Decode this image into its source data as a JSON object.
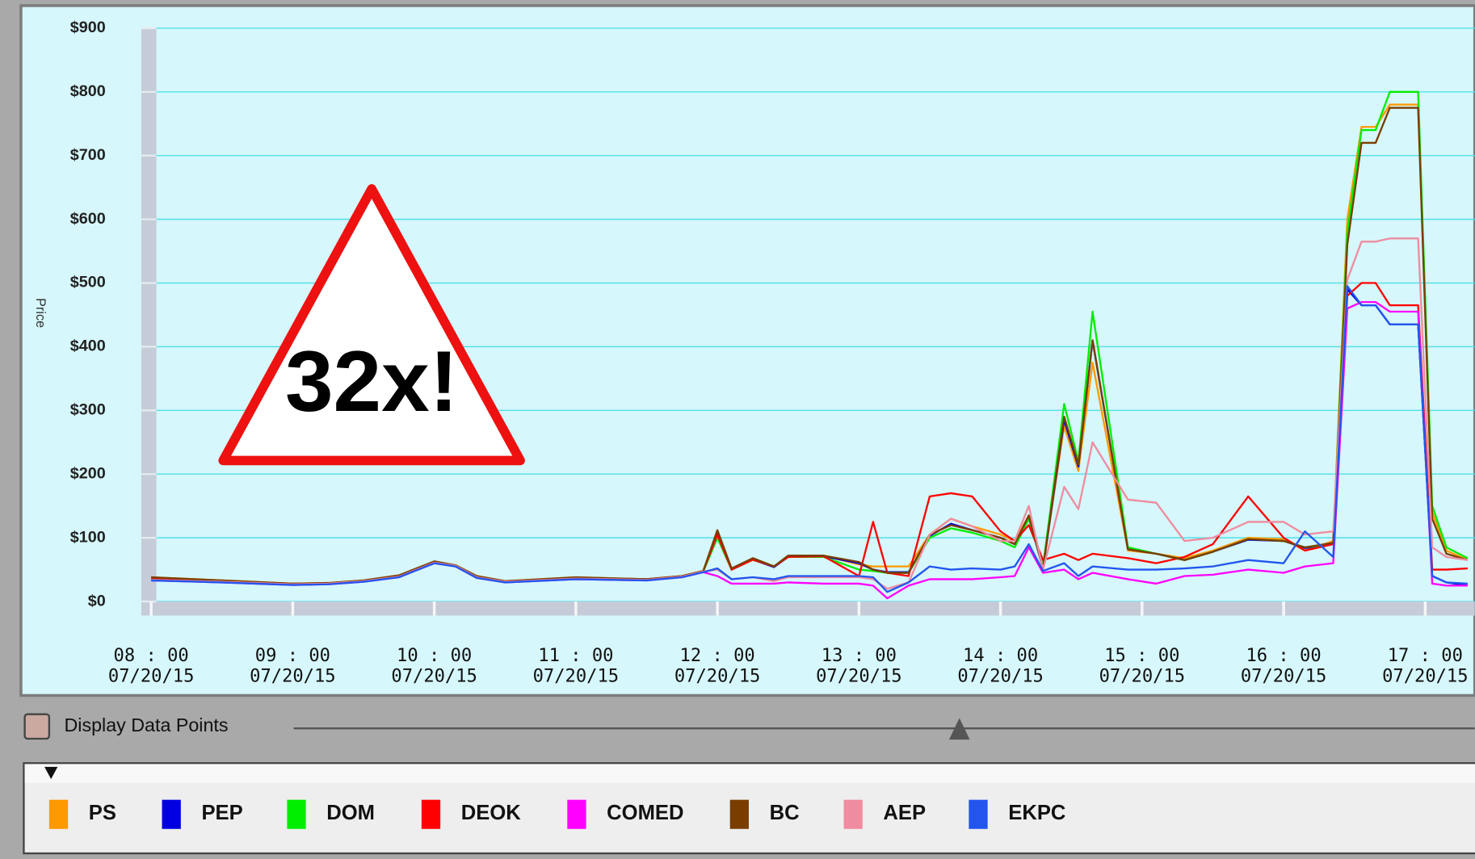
{
  "chart_data": {
    "type": "line",
    "annotation": "32x!",
    "ylabel": "Price",
    "checkbox_label": "Display Data Points",
    "x": [
      8,
      8.5,
      9,
      9.25,
      9.5,
      9.75,
      10,
      10.15,
      10.3,
      10.5,
      11,
      11.5,
      11.75,
      11.9,
      12,
      12.1,
      12.25,
      12.4,
      12.5,
      12.75,
      13,
      13.1,
      13.2,
      13.35,
      13.5,
      13.65,
      13.8,
      14,
      14.1,
      14.2,
      14.3,
      14.45,
      14.55,
      14.65,
      14.9,
      15.1,
      15.3,
      15.5,
      15.75,
      16,
      16.15,
      16.35,
      16.45,
      16.55,
      16.65,
      16.75,
      16.85,
      16.95,
      17.05,
      17.15,
      17.3
    ],
    "xlim": [
      7.1,
      17.35
    ],
    "xticks": [
      {
        "value": 8,
        "label": "08 : 00",
        "date": "07/20/15"
      },
      {
        "value": 9,
        "label": "09 : 00",
        "date": "07/20/15"
      },
      {
        "value": 10,
        "label": "10 : 00",
        "date": "07/20/15"
      },
      {
        "value": 11,
        "label": "11 : 00",
        "date": "07/20/15"
      },
      {
        "value": 12,
        "label": "12 : 00",
        "date": "07/20/15"
      },
      {
        "value": 13,
        "label": "13 : 00",
        "date": "07/20/15"
      },
      {
        "value": 14,
        "label": "14 : 00",
        "date": "07/20/15"
      },
      {
        "value": 15,
        "label": "15 : 00",
        "date": "07/20/15"
      },
      {
        "value": 16,
        "label": "16 : 00",
        "date": "07/20/15"
      },
      {
        "value": 17,
        "label": "17 : 00",
        "date": "07/20/15"
      }
    ],
    "ylim": [
      0,
      900
    ],
    "yticks": [
      {
        "value": 0,
        "label": "$0"
      },
      {
        "value": 100,
        "label": "$100"
      },
      {
        "value": 200,
        "label": "$200"
      },
      {
        "value": 300,
        "label": "$300"
      },
      {
        "value": 400,
        "label": "$400"
      },
      {
        "value": 500,
        "label": "$500"
      },
      {
        "value": 600,
        "label": "$600"
      },
      {
        "value": 700,
        "label": "$700"
      },
      {
        "value": 800,
        "label": "$800"
      },
      {
        "value": 900,
        "label": "$900"
      }
    ],
    "grid": true,
    "series": [
      {
        "name": "PS",
        "color": "#ff9900",
        "values": [
          38,
          33,
          28,
          29,
          33,
          41,
          62,
          57,
          40,
          32,
          38,
          35,
          40,
          48,
          108,
          50,
          65,
          55,
          70,
          72,
          58,
          55,
          55,
          55,
          105,
          130,
          118,
          105,
          95,
          135,
          55,
          275,
          205,
          375,
          80,
          75,
          68,
          80,
          100,
          98,
          80,
          95,
          600,
          745,
          745,
          780,
          780,
          780,
          140,
          80,
          65
        ]
      },
      {
        "name": "PEP",
        "color": "#0000e0",
        "values": [
          36,
          32,
          27,
          28,
          32,
          40,
          61,
          56,
          39,
          31,
          36,
          34,
          39,
          47,
          110,
          50,
          66,
          54,
          70,
          71,
          60,
          50,
          46,
          46,
          103,
          122,
          112,
          100,
          90,
          132,
          52,
          285,
          212,
          410,
          82,
          75,
          65,
          78,
          97,
          95,
          84,
          90,
          490,
          465,
          465,
          435,
          435,
          435,
          40,
          30,
          25
        ]
      },
      {
        "name": "DOM",
        "color": "#00ee00",
        "values": [
          35,
          31,
          27,
          28,
          31,
          39,
          60,
          55,
          38,
          31,
          36,
          34,
          39,
          47,
          100,
          50,
          68,
          55,
          70,
          70,
          50,
          48,
          45,
          45,
          100,
          115,
          108,
          95,
          85,
          130,
          55,
          310,
          220,
          455,
          85,
          75,
          65,
          78,
          98,
          95,
          85,
          90,
          580,
          740,
          740,
          800,
          800,
          800,
          150,
          85,
          68
        ]
      },
      {
        "name": "DEOK",
        "color": "#ff0000",
        "values": [
          37,
          32,
          28,
          28,
          32,
          40,
          61,
          56,
          39,
          31,
          37,
          35,
          40,
          48,
          105,
          50,
          66,
          55,
          70,
          71,
          40,
          125,
          45,
          40,
          165,
          170,
          165,
          110,
          95,
          120,
          65,
          75,
          65,
          75,
          68,
          60,
          70,
          90,
          165,
          100,
          80,
          90,
          480,
          500,
          500,
          465,
          465,
          465,
          50,
          50,
          52
        ]
      },
      {
        "name": "COMED",
        "color": "#ff00ff",
        "values": [
          33,
          30,
          26,
          27,
          31,
          38,
          60,
          55,
          37,
          30,
          35,
          33,
          38,
          46,
          40,
          28,
          28,
          28,
          30,
          28,
          28,
          25,
          5,
          25,
          35,
          35,
          35,
          38,
          40,
          85,
          45,
          50,
          35,
          45,
          35,
          28,
          40,
          42,
          50,
          45,
          55,
          60,
          460,
          470,
          470,
          455,
          455,
          455,
          28,
          25,
          25
        ]
      },
      {
        "name": "BC",
        "color": "#7a3d00",
        "values": [
          38,
          33,
          28,
          29,
          33,
          41,
          63,
          57,
          40,
          32,
          38,
          35,
          40,
          48,
          112,
          52,
          68,
          55,
          72,
          72,
          62,
          50,
          45,
          45,
          105,
          120,
          112,
          100,
          90,
          135,
          52,
          290,
          215,
          410,
          82,
          75,
          65,
          78,
          98,
          95,
          85,
          92,
          560,
          720,
          720,
          775,
          775,
          775,
          130,
          75,
          65
        ]
      },
      {
        "name": "AEP",
        "color": "#f08ca0",
        "values": [
          34,
          31,
          27,
          28,
          32,
          39,
          61,
          56,
          38,
          31,
          36,
          34,
          39,
          47,
          50,
          35,
          38,
          32,
          38,
          38,
          38,
          35,
          20,
          30,
          105,
          130,
          118,
          95,
          95,
          150,
          50,
          180,
          145,
          250,
          160,
          155,
          95,
          100,
          125,
          125,
          105,
          110,
          505,
          565,
          565,
          570,
          570,
          570,
          85,
          70,
          65
        ]
      },
      {
        "name": "EKPC",
        "color": "#2255ee",
        "values": [
          33,
          30,
          26,
          27,
          31,
          38,
          60,
          55,
          37,
          30,
          35,
          33,
          38,
          46,
          52,
          35,
          38,
          35,
          40,
          40,
          40,
          38,
          15,
          30,
          55,
          50,
          52,
          50,
          55,
          90,
          48,
          60,
          40,
          55,
          50,
          50,
          52,
          55,
          65,
          60,
          110,
          70,
          495,
          465,
          465,
          435,
          435,
          435,
          40,
          30,
          28
        ]
      }
    ]
  }
}
